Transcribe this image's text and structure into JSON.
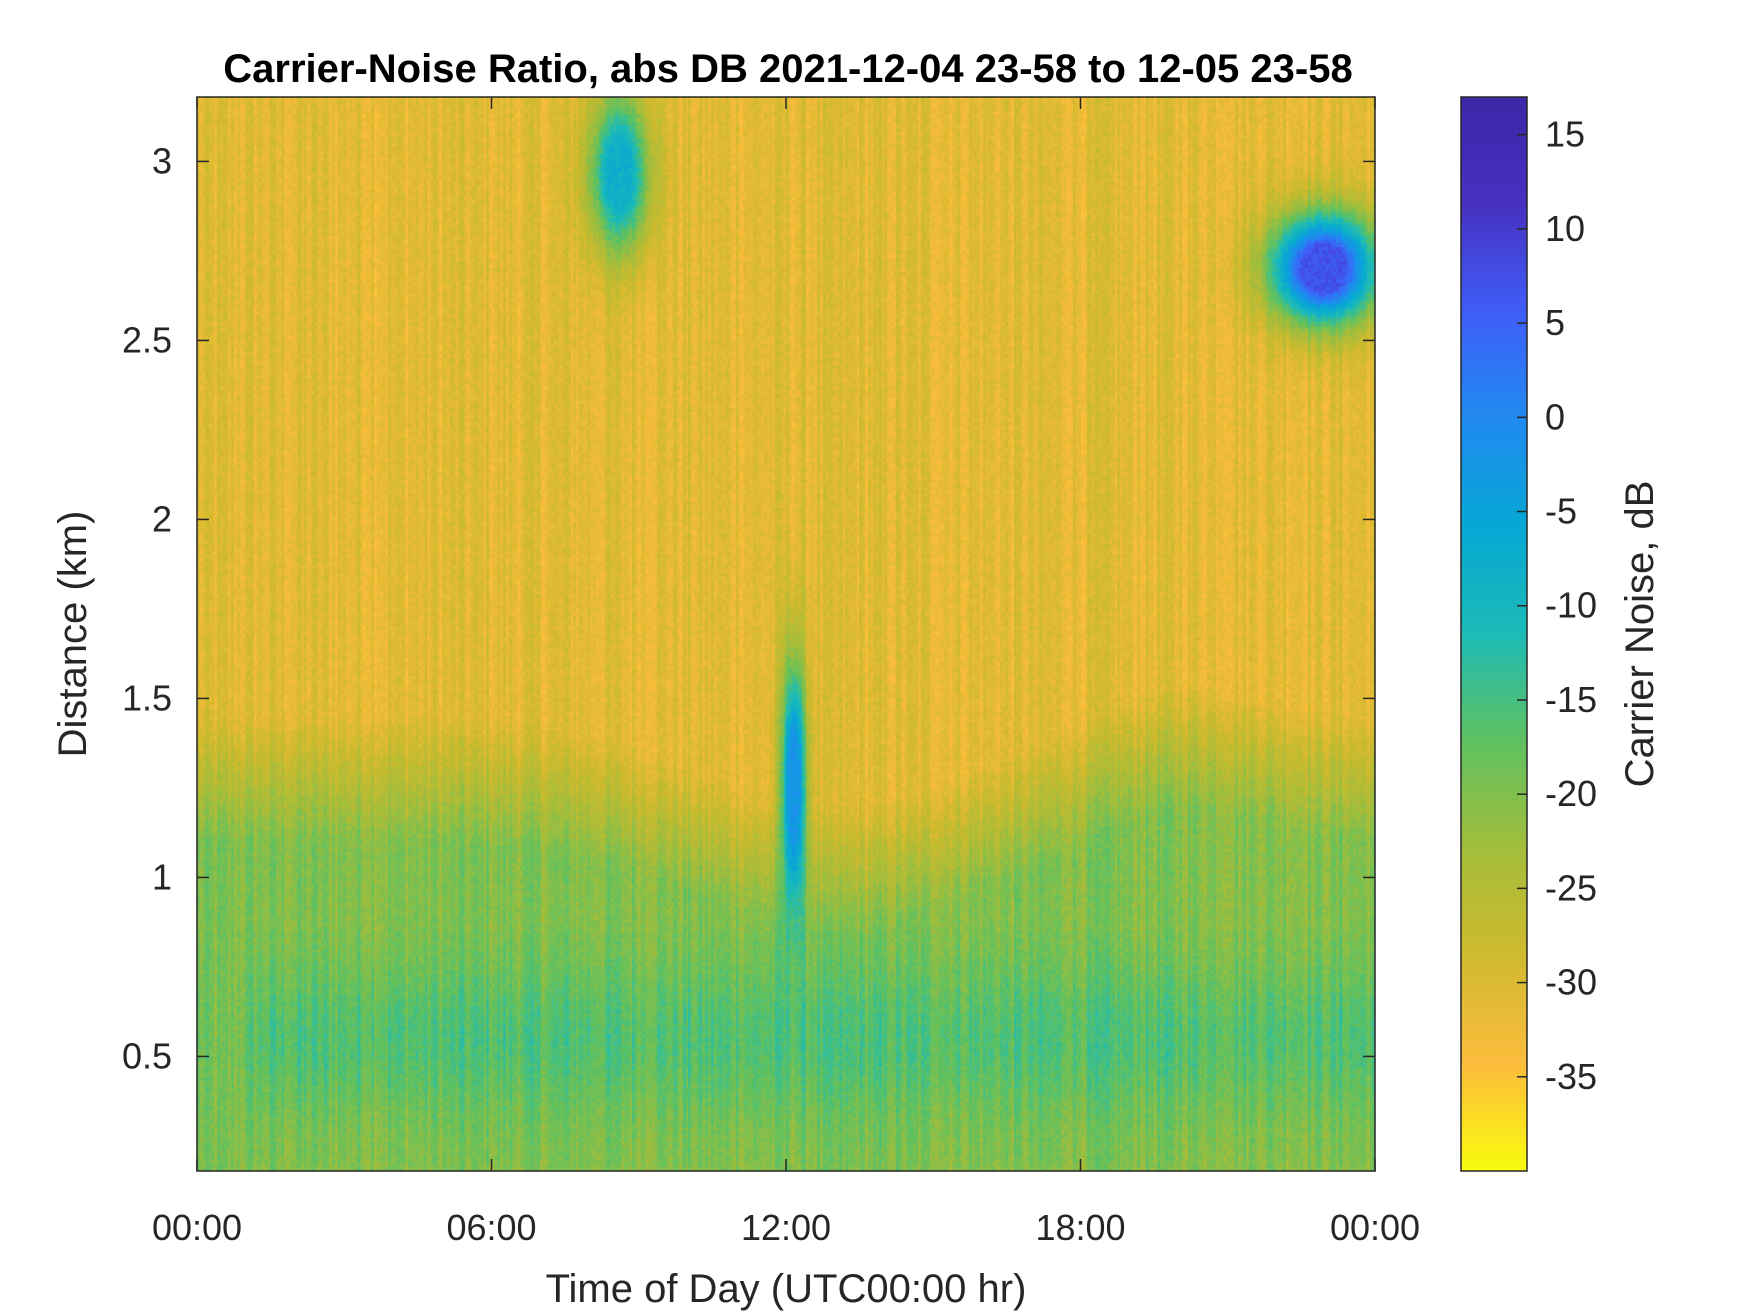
{
  "chart_data": {
    "type": "heatmap",
    "title": "Carrier-Noise Ratio, abs DB 2021-12-04 23-58 to 12-05 23-58",
    "xlabel": "Time of Day (UTC00:00 hr)",
    "ylabel": "Distance (km)",
    "colorbar_label": "Carrier Noise, dB",
    "x_ticks": [
      {
        "hours": 0,
        "label": "00:00"
      },
      {
        "hours": 6,
        "label": "06:00"
      },
      {
        "hours": 12,
        "label": "12:00"
      },
      {
        "hours": 18,
        "label": "18:00"
      },
      {
        "hours": 24,
        "label": "00:00"
      }
    ],
    "y_ticks": [
      {
        "value": 0.5,
        "label": "0.5"
      },
      {
        "value": 1,
        "label": "1"
      },
      {
        "value": 1.5,
        "label": "1.5"
      },
      {
        "value": 2,
        "label": "2"
      },
      {
        "value": 2.5,
        "label": "2.5"
      },
      {
        "value": 3,
        "label": "3"
      }
    ],
    "colorbar_ticks": [
      {
        "value": 15,
        "label": "15"
      },
      {
        "value": 10,
        "label": "10"
      },
      {
        "value": 5,
        "label": "5"
      },
      {
        "value": 0,
        "label": "0"
      },
      {
        "value": -5,
        "label": "-5"
      },
      {
        "value": -10,
        "label": "-10"
      },
      {
        "value": -15,
        "label": "-15"
      },
      {
        "value": -20,
        "label": "-20"
      },
      {
        "value": -25,
        "label": "-25"
      },
      {
        "value": -30,
        "label": "-30"
      },
      {
        "value": -35,
        "label": "-35"
      }
    ],
    "xlim": [
      0,
      24
    ],
    "ylim": [
      0.18,
      3.18
    ],
    "clim": [
      -40,
      17
    ],
    "colormap": "parula_reversed",
    "colormap_stops": [
      "#f9fb0e",
      "#fbbc3c",
      "#d0ba2d",
      "#a3bd3b",
      "#5fc160",
      "#1dbbb6",
      "#06a7d5",
      "#208af0",
      "#3f5ef8",
      "#4630c0",
      "#3e26a8"
    ],
    "approximate_profile": {
      "far_range_cnr_db": -31,
      "low_layer_cnr_db": -20,
      "cloud_features": [
        {
          "time_hours": [
            8.0,
            9.2
          ],
          "distance_km": [
            2.75,
            3.18
          ],
          "cnr_db": -8
        },
        {
          "time_hours": [
            11.9,
            12.4
          ],
          "distance_km": [
            0.9,
            1.6
          ],
          "cnr_db": -2
        },
        {
          "time_hours": [
            21.9,
            24.0
          ],
          "distance_km": [
            2.55,
            2.85
          ],
          "cnr_db": 7
        }
      ]
    }
  }
}
